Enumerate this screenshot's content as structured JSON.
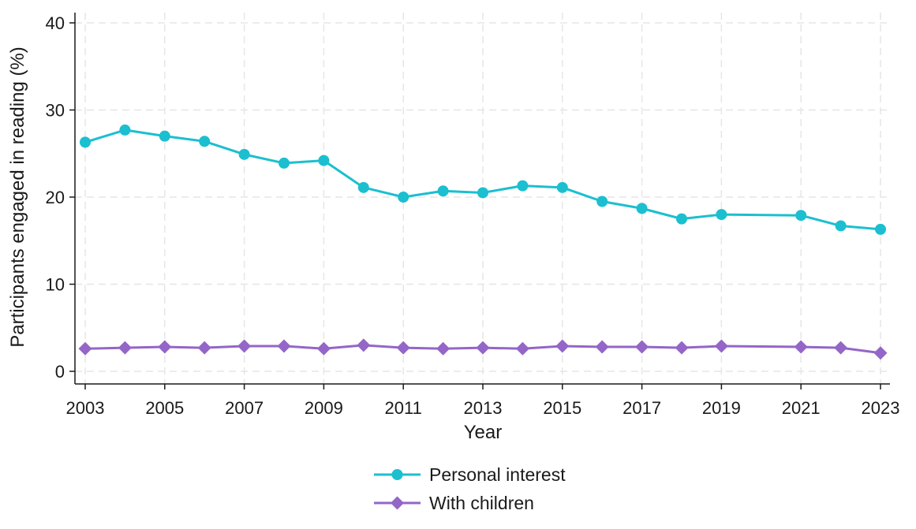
{
  "chart_data": {
    "type": "line",
    "title": "",
    "xlabel": "Year",
    "ylabel": "Participants engaged in reading (%)",
    "x": [
      2003,
      2004,
      2005,
      2006,
      2007,
      2008,
      2009,
      2010,
      2011,
      2012,
      2013,
      2014,
      2015,
      2016,
      2017,
      2018,
      2019,
      2021,
      2022,
      2023
    ],
    "xlim": [
      2003,
      2023
    ],
    "ylim": [
      0,
      40
    ],
    "xticks": [
      "2003",
      "2005",
      "2007",
      "2009",
      "2011",
      "2013",
      "2015",
      "2017",
      "2019",
      "2021",
      "2023"
    ],
    "yticks": [
      "0",
      "10",
      "20",
      "30",
      "40"
    ],
    "grid": true,
    "legend_position": "bottom",
    "series": [
      {
        "name": "Personal interest",
        "marker": "circle",
        "color": "#1bbfd0",
        "values": [
          26.3,
          27.7,
          27.0,
          26.4,
          24.9,
          23.9,
          24.2,
          21.1,
          20.0,
          20.7,
          20.5,
          21.3,
          21.1,
          19.5,
          18.7,
          17.5,
          18.0,
          17.9,
          16.7,
          16.3
        ]
      },
      {
        "name": "With children",
        "marker": "diamond",
        "color": "#9466c7",
        "values": [
          2.6,
          2.7,
          2.8,
          2.7,
          2.9,
          2.9,
          2.6,
          3.0,
          2.7,
          2.6,
          2.7,
          2.6,
          2.9,
          2.8,
          2.8,
          2.7,
          2.9,
          2.8,
          2.7,
          2.1
        ]
      }
    ]
  }
}
